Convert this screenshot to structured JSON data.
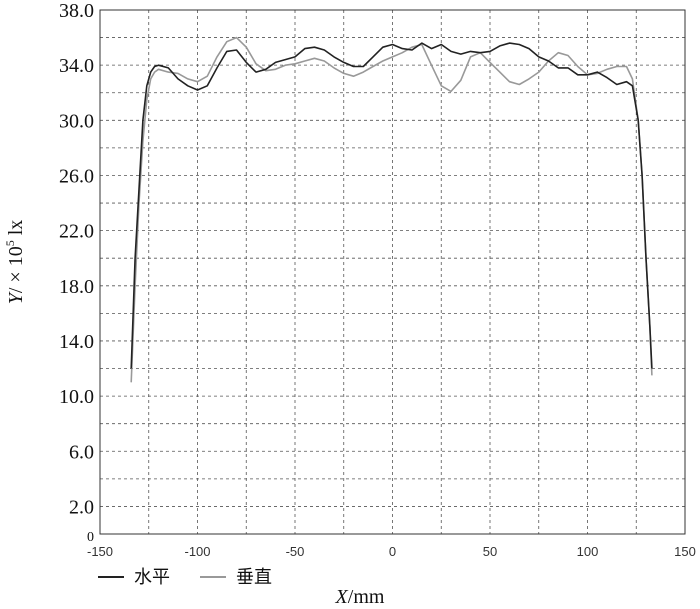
{
  "chart_data": {
    "type": "line",
    "xlabel": "X/mm",
    "ylabel": "Y/ × 10⁵ lx",
    "xlim": [
      -150,
      150
    ],
    "ylim": [
      0,
      38
    ],
    "x_ticks": [
      "-150",
      "-100",
      "-50",
      "0",
      "50",
      "100",
      "150"
    ],
    "x_tick_values": [
      -150,
      -100,
      -50,
      0,
      50,
      100,
      150
    ],
    "y_ticks": [
      "0",
      "2.0",
      "6.0",
      "10.0",
      "14.0",
      "18.0",
      "22.0",
      "26.0",
      "30.0",
      "34.0",
      "38.0"
    ],
    "y_tick_values": [
      0,
      2,
      6,
      10,
      14,
      18,
      22,
      26,
      30,
      34,
      38
    ],
    "grid": true,
    "legend_position": "bottom-left",
    "series": [
      {
        "name": "水平",
        "color": "#222222",
        "x": [
          -134,
          -132,
          -130,
          -128,
          -126,
          -124,
          -122,
          -120,
          -115,
          -110,
          -105,
          -100,
          -95,
          -90,
          -85,
          -80,
          -75,
          -70,
          -65,
          -60,
          -55,
          -50,
          -45,
          -40,
          -35,
          -30,
          -25,
          -20,
          -15,
          -10,
          -5,
          0,
          5,
          10,
          15,
          20,
          25,
          30,
          35,
          40,
          45,
          50,
          55,
          60,
          65,
          70,
          75,
          80,
          85,
          90,
          95,
          100,
          105,
          110,
          115,
          120,
          123,
          126,
          128,
          130,
          132,
          133
        ],
        "y": [
          12.0,
          20.0,
          25.0,
          30.0,
          32.5,
          33.5,
          33.9,
          34.0,
          33.8,
          33.0,
          32.5,
          32.2,
          32.5,
          33.8,
          35.0,
          35.1,
          34.2,
          33.5,
          33.7,
          34.2,
          34.4,
          34.6,
          35.2,
          35.3,
          35.1,
          34.6,
          34.2,
          33.9,
          33.9,
          34.6,
          35.3,
          35.5,
          35.2,
          35.1,
          35.6,
          35.2,
          35.5,
          35.0,
          34.8,
          35.0,
          34.9,
          35.0,
          35.4,
          35.6,
          35.5,
          35.2,
          34.6,
          34.3,
          33.8,
          33.8,
          33.3,
          33.3,
          33.5,
          33.1,
          32.6,
          32.8,
          32.5,
          30.0,
          26.0,
          20.0,
          15.0,
          12.0
        ]
      },
      {
        "name": "垂直",
        "color": "#999999",
        "x": [
          -134,
          -132,
          -130,
          -128,
          -126,
          -124,
          -122,
          -120,
          -115,
          -110,
          -105,
          -100,
          -95,
          -90,
          -85,
          -80,
          -75,
          -70,
          -65,
          -60,
          -55,
          -50,
          -45,
          -40,
          -35,
          -30,
          -25,
          -20,
          -15,
          -10,
          -5,
          0,
          5,
          10,
          15,
          20,
          25,
          30,
          35,
          40,
          45,
          50,
          55,
          60,
          65,
          70,
          75,
          80,
          85,
          90,
          95,
          100,
          105,
          110,
          115,
          120,
          123,
          126,
          128,
          130,
          132,
          133
        ],
        "y": [
          11.0,
          18.0,
          24.0,
          28.5,
          31.5,
          33.0,
          33.5,
          33.7,
          33.5,
          33.4,
          33.0,
          32.8,
          33.2,
          34.6,
          35.7,
          36.0,
          35.3,
          34.1,
          33.6,
          33.7,
          34.0,
          34.1,
          34.3,
          34.5,
          34.3,
          33.8,
          33.4,
          33.2,
          33.5,
          33.9,
          34.3,
          34.6,
          34.9,
          35.3,
          35.5,
          34.0,
          32.5,
          32.1,
          32.9,
          34.6,
          34.9,
          34.2,
          33.5,
          32.8,
          32.6,
          33.0,
          33.5,
          34.3,
          34.9,
          34.7,
          33.9,
          33.3,
          33.4,
          33.7,
          33.9,
          33.9,
          33.0,
          30.0,
          26.0,
          20.0,
          15.0,
          11.5
        ]
      }
    ]
  },
  "legend": {
    "items": [
      {
        "label": "水平",
        "color": "#222222"
      },
      {
        "label": "垂直",
        "color": "#999999"
      }
    ]
  },
  "axis_labels": {
    "x": {
      "italic": "X",
      "unit": "/mm"
    },
    "y": {
      "italic": "Y",
      "unit": "/ × 10",
      "superscript": "5",
      "unit2": " lx"
    }
  }
}
